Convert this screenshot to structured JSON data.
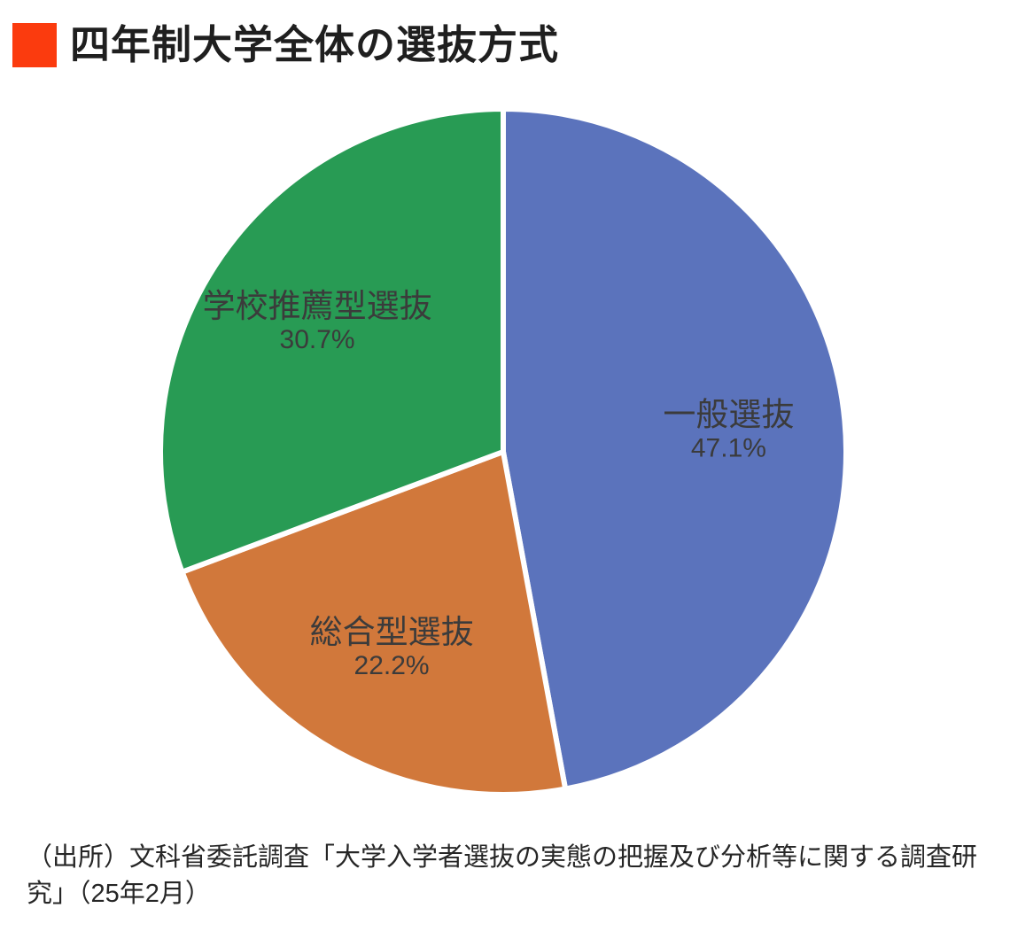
{
  "title": {
    "text": "四年制大学全体の選抜方式",
    "marker_color": "#fb3b0e",
    "text_color": "#1f1f1f"
  },
  "chart_data": {
    "type": "pie",
    "title": "四年制大学全体の選抜方式",
    "start_angle_deg": 0,
    "direction": "clockwise",
    "labels_inside": true,
    "legend": "none",
    "label_text_color": "#3b3b3b",
    "slice_border_color": "#ffffff",
    "slices": [
      {
        "label": "一般選抜",
        "value": 47.1,
        "value_label": "47.1%",
        "color": "#5b73bc"
      },
      {
        "label": "総合型選抜",
        "value": 22.2,
        "value_label": "22.2%",
        "color": "#d1783b"
      },
      {
        "label": "学校推薦型選抜",
        "value": 30.7,
        "value_label": "30.7%",
        "color": "#289b54"
      }
    ]
  },
  "source": {
    "text": "（出所）文科省委託調査「大学入学者選抜の実態の把握及び分析等に関する調査研究」（25年2月）"
  }
}
